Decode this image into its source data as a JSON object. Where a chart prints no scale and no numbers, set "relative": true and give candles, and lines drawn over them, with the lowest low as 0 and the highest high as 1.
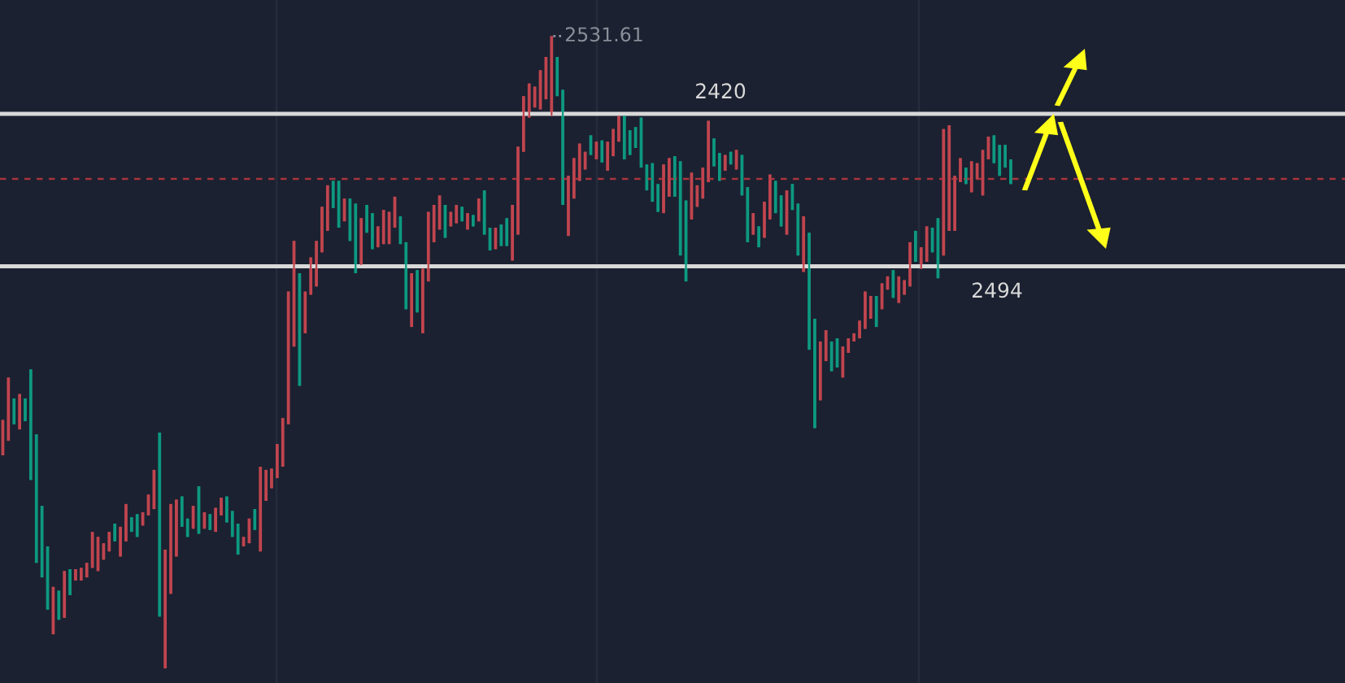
{
  "chart_data": {
    "type": "candlestick",
    "relative": true,
    "colors": [
      "#c0454f",
      "#c0454f",
      "#0e9981",
      "#c0454f",
      "#0e9981",
      "#0e9981",
      "#0e9981",
      "#0e9981",
      "#0e9981",
      "#c0454f",
      "#0e9981",
      "#c0454f",
      "#0e9981",
      "#c0454f",
      "#c0454f",
      "#c0454f",
      "#c0454f",
      "#c0454f",
      "#c0454f",
      "#c0454f",
      "#0e9981",
      "#c0454f",
      "#c0454f",
      "#0e9981",
      "#0e9981",
      "#c0454f",
      "#c0454f",
      "#c0454f",
      "#0e9981",
      "#c0454f",
      "#c0454f",
      "#c0454f",
      "#0e9981",
      "#0e9981",
      "#c0454f",
      "#0e9981",
      "#c0454f",
      "#0e9981",
      "#c0454f",
      "#c0454f",
      "#0e9981",
      "#0e9981",
      "#0e9981",
      "#c0454f",
      "#c0454f",
      "#0e9981",
      "#c0454f",
      "#c0454f",
      "#c0454f",
      "#c0454f",
      "#c0454f",
      "#c0454f",
      "#c0454f",
      "#0e9981",
      "#c0454f",
      "#c0454f",
      "#c0454f",
      "#c0454f",
      "#c0454f",
      "#0e9981",
      "#0e9981",
      "#c0454f",
      "#0e9981",
      "#0e9981",
      "#c0454f",
      "#0e9981",
      "#0e9981",
      "#c0454f",
      "#c0454f",
      "#c0454f",
      "#c0454f",
      "#0e9981",
      "#0e9981",
      "#c0454f",
      "#0e9981",
      "#c0454f",
      "#c0454f",
      "#c0454f",
      "#c0454f",
      "#0e9981",
      "#c0454f",
      "#c0454f",
      "#0e9981",
      "#c0454f",
      "#0e9981",
      "#c0454f",
      "#0e9981",
      "#0e9981",
      "#c0454f",
      "#0e9981",
      "#0e9981",
      "#c0454f",
      "#c0454f",
      "#c0454f",
      "#c0454f",
      "#c0454f",
      "#c0454f",
      "#c0454f",
      "#c0454f",
      "#0e9981",
      "#0e9981",
      "#c0454f",
      "#c0454f",
      "#c0454f",
      "#c0454f",
      "#0e9981",
      "#c0454f",
      "#0e9981",
      "#c0454f",
      "#c0454f",
      "#c0454f",
      "#0e9981",
      "#0e9981",
      "#0e9981",
      "#0e9981",
      "#0e9981",
      "#0e9981",
      "#0e9981",
      "#c0454f",
      "#c0454f",
      "#0e9981",
      "#0e9981",
      "#0e9981",
      "#c0454f",
      "#c0454f",
      "#c0454f",
      "#c0454f",
      "#0e9981",
      "#0e9981",
      "#c0454f",
      "#0e9981",
      "#c0454f",
      "#0e9981",
      "#0e9981",
      "#c0454f",
      "#0e9981",
      "#c0454f",
      "#c0454f",
      "#0e9981",
      "#0e9981",
      "#c0454f",
      "#0e9981",
      "#0e9981",
      "#c0454f",
      "#0e9981",
      "#0e9981",
      "#c0454f",
      "#c0454f",
      "#0e9981",
      "#0e9981",
      "#c0454f",
      "#c0454f",
      "#c0454f",
      "#c0454f",
      "#c0454f",
      "#c0454f",
      "#0e9981",
      "#c0454f",
      "#c0454f",
      "#0e9981",
      "#c0454f",
      "#c0454f",
      "#c0454f",
      "#0e9981",
      "#c0454f",
      "#c0454f",
      "#0e9981",
      "#0e9981",
      "#c0454f",
      "#c0454f",
      "#c0454f",
      "#c0454f",
      "#0e9981",
      "#c0454f",
      "#c0454f",
      "#c0454f",
      "#c0454f",
      "#0e9981",
      "#0e9981",
      "#0e9981",
      "#0e9981"
    ],
    "categories": [
      null,
      null,
      null,
      null,
      null,
      null,
      null,
      null,
      null,
      null,
      null,
      null,
      null,
      null,
      null,
      null,
      null,
      null,
      null,
      null,
      null,
      null,
      null,
      null,
      null,
      null,
      null,
      null,
      null,
      null,
      null,
      null,
      null,
      null,
      null,
      null,
      null,
      null,
      null,
      null,
      null,
      null,
      null,
      null,
      null,
      null,
      null,
      null,
      null,
      null,
      null,
      null,
      null,
      null,
      null,
      null,
      null,
      null,
      null,
      null,
      null,
      null,
      null,
      null,
      null,
      null,
      null,
      null,
      null,
      null,
      null,
      null,
      null,
      null,
      null,
      null,
      null,
      null,
      null,
      null,
      null,
      null,
      null,
      null,
      null,
      null,
      null,
      null,
      null,
      null,
      null,
      null,
      null,
      null,
      null,
      null,
      null,
      null,
      null,
      null,
      null,
      null,
      null,
      null,
      null,
      null,
      null,
      null,
      null,
      null,
      null,
      null,
      null,
      null,
      null,
      null,
      null,
      null,
      null,
      null,
      null,
      null,
      null,
      null,
      null,
      null,
      null,
      null,
      null,
      null,
      null,
      null,
      null,
      null,
      null,
      null,
      null,
      null,
      null,
      null,
      null,
      null,
      null,
      null,
      null,
      null,
      null,
      null,
      null,
      null,
      null,
      null,
      null,
      null,
      null,
      null,
      null,
      null,
      null,
      null,
      null,
      null,
      null,
      null,
      null,
      null,
      null,
      null,
      null,
      null,
      null,
      null,
      null,
      null,
      null,
      null,
      null,
      null,
      null,
      null,
      null
    ],
    "ohlc": [
      [
        0.337,
        0.393,
        0.337,
        0.393
      ],
      [
        0.36,
        0.46,
        0.36,
        0.46
      ],
      [
        0.427,
        0.427,
        0.386,
        0.386
      ],
      [
        0.378,
        0.434,
        0.378,
        0.434
      ],
      [
        0.427,
        0.427,
        0.391,
        0.391
      ],
      [
        0.473,
        0.473,
        0.298,
        0.298
      ],
      [
        0.37,
        0.37,
        0.167,
        0.167
      ],
      [
        0.257,
        0.257,
        0.144,
        0.144
      ],
      [
        0.193,
        0.193,
        0.093,
        0.093
      ],
      [
        0.054,
        0.129,
        0.054,
        0.129
      ],
      [
        0.123,
        0.123,
        0.077,
        0.077
      ],
      [
        0.08,
        0.154,
        0.08,
        0.154
      ],
      [
        0.157,
        0.157,
        0.116,
        0.116
      ],
      [
        0.139,
        0.157,
        0.139,
        0.157
      ],
      [
        0.139,
        0.159,
        0.139,
        0.159
      ],
      [
        0.144,
        0.167,
        0.144,
        0.167
      ],
      [
        0.159,
        0.216,
        0.159,
        0.216
      ],
      [
        0.154,
        0.208,
        0.154,
        0.208
      ],
      [
        0.172,
        0.198,
        0.172,
        0.198
      ],
      [
        0.185,
        0.216,
        0.185,
        0.216
      ],
      [
        0.229,
        0.229,
        0.201,
        0.201
      ],
      [
        0.177,
        0.224,
        0.177,
        0.224
      ],
      [
        0.201,
        0.26,
        0.201,
        0.26
      ],
      [
        0.239,
        0.239,
        0.216,
        0.216
      ],
      [
        0.244,
        0.244,
        0.208,
        0.208
      ],
      [
        0.226,
        0.247,
        0.226,
        0.247
      ],
      [
        0.242,
        0.275,
        0.242,
        0.275
      ],
      [
        0.252,
        0.314,
        0.252,
        0.314
      ],
      [
        0.373,
        0.373,
        0.082,
        0.082
      ],
      [
        0.0,
        0.188,
        0.0,
        0.188
      ],
      [
        0.118,
        0.26,
        0.118,
        0.26
      ],
      [
        0.177,
        0.267,
        0.177,
        0.267
      ],
      [
        0.272,
        0.272,
        0.224,
        0.224
      ],
      [
        0.237,
        0.237,
        0.208,
        0.208
      ],
      [
        0.221,
        0.257,
        0.221,
        0.257
      ],
      [
        0.288,
        0.288,
        0.213,
        0.213
      ],
      [
        0.221,
        0.247,
        0.221,
        0.247
      ],
      [
        0.244,
        0.244,
        0.219,
        0.219
      ],
      [
        0.216,
        0.254,
        0.216,
        0.254
      ],
      [
        0.242,
        0.27,
        0.242,
        0.27
      ],
      [
        0.272,
        0.272,
        0.231,
        0.231
      ],
      [
        0.249,
        0.249,
        0.208,
        0.208
      ],
      [
        0.229,
        0.229,
        0.18,
        0.18
      ],
      [
        0.193,
        0.208,
        0.193,
        0.208
      ],
      [
        0.198,
        0.237,
        0.198,
        0.237
      ],
      [
        0.252,
        0.252,
        0.219,
        0.219
      ],
      [
        0.185,
        0.319,
        0.185,
        0.319
      ],
      [
        0.265,
        0.314,
        0.265,
        0.314
      ],
      [
        0.285,
        0.316,
        0.285,
        0.316
      ],
      [
        0.301,
        0.355,
        0.301,
        0.355
      ],
      [
        0.319,
        0.396,
        0.319,
        0.396
      ],
      [
        0.386,
        0.596,
        0.386,
        0.596
      ],
      [
        0.509,
        0.676,
        0.509,
        0.676
      ],
      [
        0.625,
        0.625,
        0.447,
        0.447
      ],
      [
        0.53,
        0.596,
        0.53,
        0.596
      ],
      [
        0.591,
        0.65,
        0.591,
        0.65
      ],
      [
        0.604,
        0.676,
        0.604,
        0.676
      ],
      [
        0.658,
        0.73,
        0.658,
        0.73
      ],
      [
        0.692,
        0.764,
        0.692,
        0.764
      ],
      [
        0.771,
        0.771,
        0.728,
        0.728
      ],
      [
        0.771,
        0.771,
        0.697,
        0.697
      ],
      [
        0.707,
        0.743,
        0.707,
        0.743
      ],
      [
        0.743,
        0.743,
        0.676,
        0.676
      ],
      [
        0.735,
        0.735,
        0.625,
        0.625
      ],
      [
        0.638,
        0.712,
        0.638,
        0.712
      ],
      [
        0.733,
        0.733,
        0.689,
        0.689
      ],
      [
        0.72,
        0.72,
        0.663,
        0.663
      ],
      [
        0.666,
        0.699,
        0.666,
        0.699
      ],
      [
        0.671,
        0.725,
        0.671,
        0.725
      ],
      [
        0.671,
        0.722,
        0.671,
        0.722
      ],
      [
        0.697,
        0.746,
        0.697,
        0.746
      ],
      [
        0.715,
        0.715,
        0.671,
        0.671
      ],
      [
        0.674,
        0.674,
        0.568,
        0.568
      ],
      [
        0.54,
        0.625,
        0.54,
        0.625
      ],
      [
        0.63,
        0.63,
        0.563,
        0.563
      ],
      [
        0.53,
        0.632,
        0.53,
        0.632
      ],
      [
        0.612,
        0.722,
        0.612,
        0.722
      ],
      [
        0.674,
        0.733,
        0.674,
        0.733
      ],
      [
        0.694,
        0.748,
        0.694,
        0.748
      ],
      [
        0.733,
        0.733,
        0.681,
        0.681
      ],
      [
        0.699,
        0.722,
        0.699,
        0.722
      ],
      [
        0.704,
        0.733,
        0.704,
        0.733
      ],
      [
        0.73,
        0.73,
        0.707,
        0.707
      ],
      [
        0.694,
        0.72,
        0.694,
        0.72
      ],
      [
        0.717,
        0.717,
        0.699,
        0.699
      ],
      [
        0.707,
        0.743,
        0.707,
        0.743
      ],
      [
        0.756,
        0.756,
        0.686,
        0.686
      ],
      [
        0.697,
        0.697,
        0.661,
        0.661
      ],
      [
        0.663,
        0.697,
        0.663,
        0.697
      ],
      [
        0.702,
        0.702,
        0.668,
        0.668
      ],
      [
        0.712,
        0.712,
        0.668,
        0.668
      ],
      [
        0.645,
        0.733,
        0.645,
        0.733
      ],
      [
        0.686,
        0.825,
        0.686,
        0.825
      ],
      [
        0.817,
        0.905,
        0.817,
        0.905
      ],
      [
        0.871,
        0.925,
        0.871,
        0.925
      ],
      [
        0.887,
        0.92,
        0.887,
        0.92
      ],
      [
        0.884,
        0.946,
        0.884,
        0.946
      ],
      [
        0.9,
        0.967,
        0.9,
        0.967
      ],
      [
        0.874,
        1.0,
        0.874,
        1.0
      ],
      [
        0.967,
        0.967,
        0.905,
        0.905
      ],
      [
        0.915,
        0.915,
        0.733,
        0.733
      ],
      [
        0.684,
        0.779,
        0.684,
        0.779
      ],
      [
        0.743,
        0.807,
        0.743,
        0.807
      ],
      [
        0.771,
        0.83,
        0.771,
        0.83
      ],
      [
        0.789,
        0.817,
        0.789,
        0.817
      ],
      [
        0.843,
        0.843,
        0.812,
        0.812
      ],
      [
        0.805,
        0.833,
        0.805,
        0.833
      ],
      [
        0.835,
        0.835,
        0.8,
        0.8
      ],
      [
        0.787,
        0.833,
        0.787,
        0.833
      ],
      [
        0.81,
        0.853,
        0.81,
        0.853
      ],
      [
        0.833,
        0.874,
        0.833,
        0.874
      ],
      [
        0.874,
        0.874,
        0.805,
        0.805
      ],
      [
        0.851,
        0.851,
        0.812,
        0.812
      ],
      [
        0.856,
        0.856,
        0.823,
        0.823
      ],
      [
        0.871,
        0.871,
        0.792,
        0.792
      ],
      [
        0.797,
        0.797,
        0.756,
        0.756
      ],
      [
        0.799,
        0.799,
        0.738,
        0.738
      ],
      [
        0.766,
        0.766,
        0.722,
        0.722
      ],
      [
        0.72,
        0.797,
        0.72,
        0.797
      ],
      [
        0.746,
        0.807,
        0.746,
        0.807
      ],
      [
        0.81,
        0.81,
        0.746,
        0.746
      ],
      [
        0.802,
        0.802,
        0.653,
        0.653
      ],
      [
        0.74,
        0.74,
        0.612,
        0.612
      ],
      [
        0.71,
        0.784,
        0.71,
        0.784
      ],
      [
        0.73,
        0.764,
        0.73,
        0.764
      ],
      [
        0.743,
        0.792,
        0.743,
        0.792
      ],
      [
        0.769,
        0.866,
        0.769,
        0.866
      ],
      [
        0.838,
        0.838,
        0.794,
        0.794
      ],
      [
        0.815,
        0.815,
        0.771,
        0.771
      ],
      [
        0.787,
        0.812,
        0.787,
        0.812
      ],
      [
        0.817,
        0.817,
        0.797,
        0.797
      ],
      [
        0.789,
        0.82,
        0.789,
        0.82
      ],
      [
        0.812,
        0.812,
        0.748,
        0.748
      ],
      [
        0.761,
        0.761,
        0.674,
        0.674
      ],
      [
        0.686,
        0.72,
        0.686,
        0.72
      ],
      [
        0.699,
        0.699,
        0.666,
        0.666
      ],
      [
        0.681,
        0.738,
        0.681,
        0.738
      ],
      [
        0.71,
        0.781,
        0.71,
        0.781
      ],
      [
        0.771,
        0.771,
        0.72,
        0.72
      ],
      [
        0.748,
        0.748,
        0.699,
        0.699
      ],
      [
        0.686,
        0.756,
        0.686,
        0.756
      ],
      [
        0.766,
        0.766,
        0.725,
        0.725
      ],
      [
        0.735,
        0.735,
        0.653,
        0.653
      ],
      [
        0.627,
        0.715,
        0.627,
        0.715
      ],
      [
        0.689,
        0.689,
        0.504,
        0.504
      ],
      [
        0.553,
        0.553,
        0.38,
        0.38
      ],
      [
        0.424,
        0.517,
        0.424,
        0.517
      ],
      [
        0.486,
        0.535,
        0.486,
        0.535
      ],
      [
        0.517,
        0.517,
        0.47,
        0.47
      ],
      [
        0.522,
        0.522,
        0.476,
        0.476
      ],
      [
        0.46,
        0.509,
        0.46,
        0.509
      ],
      [
        0.499,
        0.522,
        0.499,
        0.522
      ],
      [
        0.517,
        0.53,
        0.517,
        0.53
      ],
      [
        0.522,
        0.55,
        0.522,
        0.55
      ],
      [
        0.537,
        0.596,
        0.537,
        0.596
      ],
      [
        0.553,
        0.589,
        0.553,
        0.589
      ],
      [
        0.589,
        0.589,
        0.54,
        0.54
      ],
      [
        0.568,
        0.609,
        0.568,
        0.609
      ],
      [
        0.599,
        0.62,
        0.599,
        0.62
      ],
      [
        0.63,
        0.63,
        0.586,
        0.586
      ],
      [
        0.578,
        0.62,
        0.578,
        0.62
      ],
      [
        0.591,
        0.614,
        0.591,
        0.614
      ],
      [
        0.604,
        0.674,
        0.604,
        0.674
      ],
      [
        0.692,
        0.692,
        0.643,
        0.643
      ],
      [
        0.632,
        0.666,
        0.632,
        0.666
      ],
      [
        0.643,
        0.699,
        0.643,
        0.699
      ],
      [
        0.697,
        0.697,
        0.658,
        0.658
      ],
      [
        0.712,
        0.712,
        0.617,
        0.617
      ],
      [
        0.653,
        0.853,
        0.653,
        0.853
      ],
      [
        0.692,
        0.859,
        0.692,
        0.859
      ],
      [
        0.692,
        0.779,
        0.692,
        0.779
      ],
      [
        0.769,
        0.807,
        0.769,
        0.807
      ],
      [
        0.792,
        0.792,
        0.766,
        0.766
      ],
      [
        0.753,
        0.802,
        0.753,
        0.802
      ],
      [
        0.774,
        0.799,
        0.774,
        0.799
      ],
      [
        0.748,
        0.82,
        0.748,
        0.82
      ],
      [
        0.805,
        0.841,
        0.805,
        0.841
      ],
      [
        0.843,
        0.843,
        0.799,
        0.799
      ],
      [
        0.828,
        0.828,
        0.779,
        0.779
      ],
      [
        0.828,
        0.828,
        0.792,
        0.792
      ],
      [
        0.805,
        0.805,
        0.766,
        0.766
      ]
    ],
    "ref_lines": [
      {
        "axis": "y",
        "value": 0.877,
        "color": "#d9d9d9"
      },
      {
        "axis": "y",
        "value": 0.636,
        "color": "#d9d9d9"
      },
      {
        "axis": "y",
        "value": 0.774,
        "color": "#a8343d",
        "line_style": "dashed"
      }
    ],
    "annotations": [
      "2531.61",
      "2420",
      "2494"
    ]
  }
}
